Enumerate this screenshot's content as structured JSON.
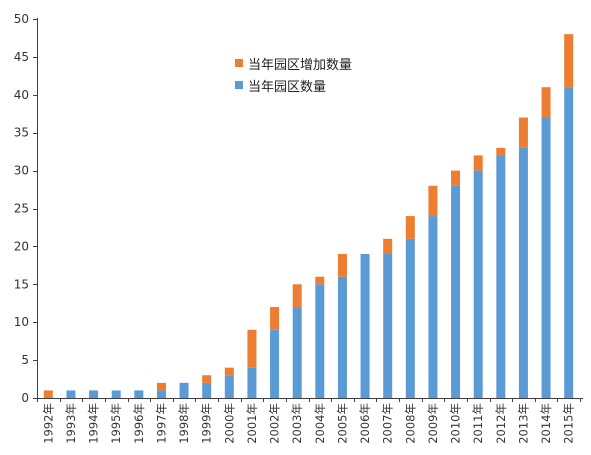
{
  "chart_data": {
    "type": "bar",
    "stacked": true,
    "title": "",
    "xlabel": "",
    "ylabel": "",
    "categories": [
      "1992年",
      "1993年",
      "1994年",
      "1995年",
      "1996年",
      "1997年",
      "1998年",
      "1999年",
      "2000年",
      "2001年",
      "2002年",
      "2003年",
      "2004年",
      "2005年",
      "2006年",
      "2007年",
      "2008年",
      "2009年",
      "2010年",
      "2011年",
      "2012年",
      "2013年",
      "2014年",
      "2015年"
    ],
    "series": [
      {
        "name": "当年园区数量",
        "color": "#5B9BD5",
        "values": [
          0,
          1,
          1,
          1,
          1,
          1,
          2,
          2,
          3,
          4,
          9,
          12,
          15,
          16,
          19,
          19,
          21,
          24,
          28,
          30,
          32,
          33,
          37,
          41
        ]
      },
      {
        "name": "当年园区增加数量",
        "color": "#ED7D31",
        "values": [
          1,
          0,
          0,
          0,
          0,
          1,
          0,
          1,
          1,
          5,
          3,
          3,
          1,
          3,
          0,
          2,
          3,
          4,
          2,
          2,
          1,
          4,
          4,
          7
        ]
      }
    ],
    "ylim": [
      0,
      50
    ],
    "yticks": [
      0,
      5,
      10,
      15,
      20,
      25,
      30,
      35,
      40,
      45,
      50
    ],
    "grid": false,
    "legend": {
      "position": "top-center"
    }
  }
}
